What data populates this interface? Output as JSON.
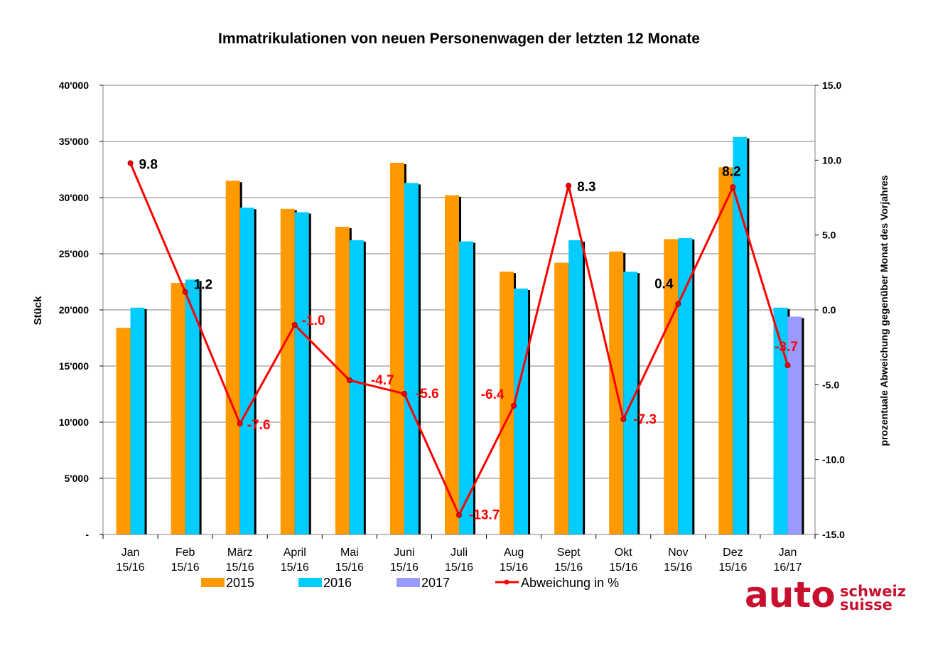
{
  "chart_data": {
    "type": "bar",
    "title": "Immatrikulationen von neuen Personenwagen der letzten 12 Monate",
    "ylabel": "Stück",
    "y2label": "prozentuale Abweichung gegenüber Monat des Vorjahres",
    "ylim": [
      0,
      40000
    ],
    "y2lim": [
      -15,
      15
    ],
    "yticks": [
      "-",
      "5'000",
      "10'000",
      "15'000",
      "20'000",
      "25'000",
      "30'000",
      "35'000",
      "40'000"
    ],
    "y2ticks": [
      "-15.0",
      "-10.0",
      "-5.0",
      "0.0",
      "5.0",
      "10.0",
      "15.0"
    ],
    "categories": [
      [
        "Jan",
        "15/16"
      ],
      [
        "Feb",
        "15/16"
      ],
      [
        "März",
        "15/16"
      ],
      [
        "April",
        "15/16"
      ],
      [
        "Mai",
        "15/16"
      ],
      [
        "Juni",
        "15/16"
      ],
      [
        "Juli",
        "15/16"
      ],
      [
        "Aug",
        "15/16"
      ],
      [
        "Sept",
        "15/16"
      ],
      [
        "Okt",
        "15/16"
      ],
      [
        "Nov",
        "15/16"
      ],
      [
        "Dez",
        "15/16"
      ],
      [
        "Jan",
        "16/17"
      ]
    ],
    "series": [
      {
        "name": "2015",
        "color": "#ff9900",
        "values": [
          18400,
          22400,
          31500,
          29000,
          27400,
          33100,
          30200,
          23400,
          24200,
          25200,
          26300,
          32700,
          null
        ]
      },
      {
        "name": "2016",
        "color": "#00ccff",
        "values": [
          20200,
          22700,
          29100,
          28700,
          26200,
          31300,
          26100,
          21900,
          26200,
          23400,
          26400,
          35400,
          20200
        ]
      },
      {
        "name": "2017",
        "color": "#9999ff",
        "values": [
          null,
          null,
          null,
          null,
          null,
          null,
          null,
          null,
          null,
          null,
          null,
          null,
          19400
        ]
      }
    ],
    "line": {
      "name": "Abweichung in %",
      "color": "#ff0000",
      "axis": "right",
      "values": [
        9.8,
        1.2,
        -7.6,
        -1.0,
        -4.7,
        -5.6,
        -13.7,
        -6.4,
        8.3,
        -7.3,
        0.4,
        8.2,
        -3.7
      ],
      "labels": [
        "9.8",
        "1.2",
        "-7.6",
        "-1.0",
        "-4.7",
        "-5.6",
        "-13.7",
        "-6.4",
        "8.3",
        "-7.3",
        "0.4",
        "8.2",
        "-3.7"
      ]
    },
    "grid": true,
    "legend": "bottom"
  },
  "logo": {
    "main": "auto",
    "line1": "schweiz",
    "line2": "suisse"
  }
}
